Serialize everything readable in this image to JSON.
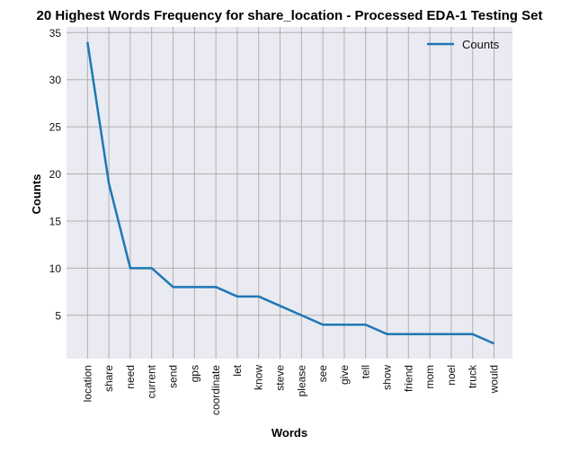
{
  "chart_data": {
    "type": "line",
    "title": "20 Highest Words Frequency for share_location - Processed EDA-1 Testing Set",
    "xlabel": "Words",
    "ylabel": "Counts",
    "categories": [
      "location",
      "share",
      "need",
      "current",
      "send",
      "gps",
      "coordinate",
      "let",
      "know",
      "steve",
      "please",
      "see",
      "give",
      "tell",
      "show",
      "friend",
      "mom",
      "noel",
      "truck",
      "would"
    ],
    "series": [
      {
        "name": "Counts",
        "values": [
          34,
          19,
          10,
          10,
          8,
          8,
          8,
          7,
          7,
          6,
          5,
          4,
          4,
          4,
          3,
          3,
          3,
          3,
          3,
          2
        ],
        "color": "#1f77b4"
      }
    ],
    "ylim": [
      0.4,
      35.6
    ],
    "yticks": [
      5,
      10,
      15,
      20,
      25,
      30,
      35
    ],
    "grid": true,
    "legend": "top-right",
    "background": "#eaeaf2",
    "grid_color": "#b0b0b0"
  }
}
